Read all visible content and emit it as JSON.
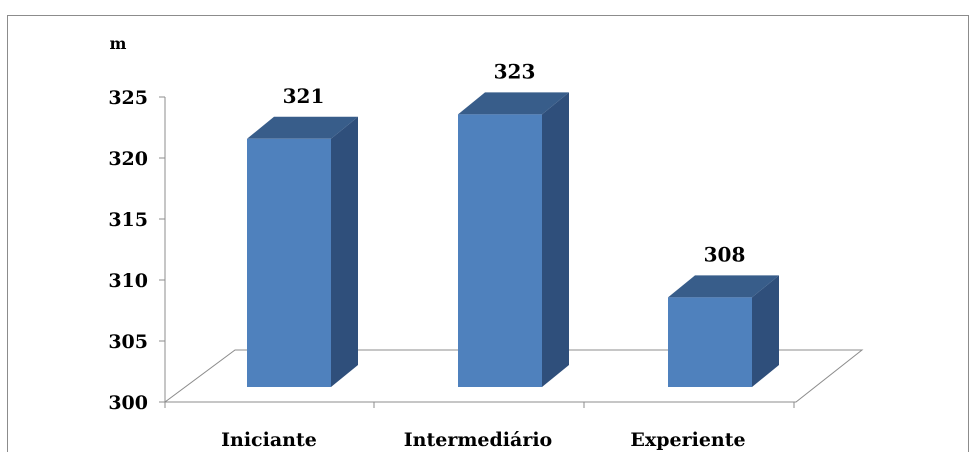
{
  "chart_data": {
    "type": "bar",
    "categories": [
      "Iniciante",
      "Intermediário",
      "Experiente"
    ],
    "values": [
      321,
      323,
      308
    ],
    "data_labels": [
      "321",
      "323",
      "308"
    ],
    "title": "",
    "xlabel": "",
    "ylabel": "m",
    "ylim": [
      300,
      325
    ],
    "y_ticks": [
      300,
      305,
      310,
      315,
      320,
      325
    ],
    "grid": false,
    "legend": "none",
    "style": "3d-column",
    "colors": {
      "bar_front": "#4f81bd",
      "bar_side": "#2f4f7b",
      "bar_top": "#385d8a",
      "axis": "#8c8c8c"
    }
  }
}
